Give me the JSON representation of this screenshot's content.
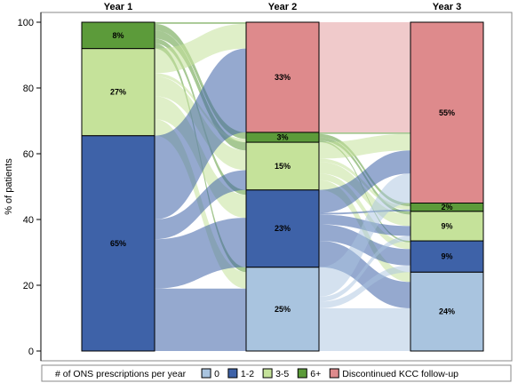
{
  "chart_data": {
    "type": "stacked-bar-alluvial",
    "title": "",
    "xlabel": "",
    "ylabel": "% of patients",
    "ylim": [
      0,
      100
    ],
    "yticks": [
      0,
      20,
      40,
      60,
      80,
      100
    ],
    "categories": [
      "Year 1",
      "Year 2",
      "Year 3"
    ],
    "legend": {
      "title": "# of ONS prescriptions per year",
      "placement": "bottom",
      "entries": [
        "0",
        "1-2",
        "3-5",
        "6+",
        "Discontinued KCC follow-up"
      ]
    },
    "series": [
      {
        "name": "0",
        "color": "#a9c4df",
        "values": [
          0,
          25.5,
          24
        ],
        "labels": [
          "",
          "25%",
          "24%"
        ]
      },
      {
        "name": "1-2",
        "color": "#3e62a8",
        "values": [
          65.5,
          23.5,
          9.5
        ],
        "labels": [
          "65%",
          "23%",
          "9%"
        ]
      },
      {
        "name": "3-5",
        "color": "#c5e29a",
        "values": [
          26.5,
          14.5,
          9
        ],
        "labels": [
          "27%",
          "15%",
          "9%"
        ]
      },
      {
        "name": "6+",
        "color": "#5c9b3a",
        "values": [
          8,
          3,
          2.5
        ],
        "labels": [
          "8%",
          "3%",
          "2%"
        ]
      },
      {
        "name": "Discontinued KCC follow-up",
        "color": "#de8a8c",
        "values": [
          0,
          33.5,
          55
        ],
        "labels": [
          "",
          "33%",
          "55%"
        ]
      }
    ],
    "flows": [
      {
        "from_col": 0,
        "to_col": 1,
        "from": "1-2",
        "to": "0",
        "value": 19
      },
      {
        "from_col": 0,
        "to_col": 1,
        "from": "1-2",
        "to": "1-2",
        "value": 15
      },
      {
        "from_col": 0,
        "to_col": 1,
        "from": "1-2",
        "to": "3-5",
        "value": 6
      },
      {
        "from_col": 0,
        "to_col": 1,
        "from": "1-2",
        "to": "Discontinued KCC follow-up",
        "value": 25.5
      },
      {
        "from_col": 0,
        "to_col": 1,
        "from": "3-5",
        "to": "0",
        "value": 5
      },
      {
        "from_col": 0,
        "to_col": 1,
        "from": "3-5",
        "to": "1-2",
        "value": 7
      },
      {
        "from_col": 0,
        "to_col": 1,
        "from": "3-5",
        "to": "3-5",
        "value": 6
      },
      {
        "from_col": 0,
        "to_col": 1,
        "from": "3-5",
        "to": "6+",
        "value": 1
      },
      {
        "from_col": 0,
        "to_col": 1,
        "from": "3-5",
        "to": "Discontinued KCC follow-up",
        "value": 7.5
      },
      {
        "from_col": 0,
        "to_col": 1,
        "from": "6+",
        "to": "0",
        "value": 1.5
      },
      {
        "from_col": 0,
        "to_col": 1,
        "from": "6+",
        "to": "1-2",
        "value": 1.5
      },
      {
        "from_col": 0,
        "to_col": 1,
        "from": "6+",
        "to": "3-5",
        "value": 2.5
      },
      {
        "from_col": 0,
        "to_col": 1,
        "from": "6+",
        "to": "6+",
        "value": 2
      },
      {
        "from_col": 0,
        "to_col": 1,
        "from": "6+",
        "to": "Discontinued KCC follow-up",
        "value": 0.5
      },
      {
        "from_col": 1,
        "to_col": 2,
        "from": "0",
        "to": "0",
        "value": 13
      },
      {
        "from_col": 1,
        "to_col": 2,
        "from": "0",
        "to": "1-2",
        "value": 2
      },
      {
        "from_col": 1,
        "to_col": 2,
        "from": "0",
        "to": "3-5",
        "value": 1.5
      },
      {
        "from_col": 1,
        "to_col": 2,
        "from": "0",
        "to": "Discontinued KCC follow-up",
        "value": 9
      },
      {
        "from_col": 1,
        "to_col": 2,
        "from": "1-2",
        "to": "0",
        "value": 8
      },
      {
        "from_col": 1,
        "to_col": 2,
        "from": "1-2",
        "to": "1-2",
        "value": 5
      },
      {
        "from_col": 1,
        "to_col": 2,
        "from": "1-2",
        "to": "3-5",
        "value": 3
      },
      {
        "from_col": 1,
        "to_col": 2,
        "from": "1-2",
        "to": "6+",
        "value": 0.5
      },
      {
        "from_col": 1,
        "to_col": 2,
        "from": "1-2",
        "to": "Discontinued KCC follow-up",
        "value": 7
      },
      {
        "from_col": 1,
        "to_col": 2,
        "from": "3-5",
        "to": "0",
        "value": 3
      },
      {
        "from_col": 1,
        "to_col": 2,
        "from": "3-5",
        "to": "1-2",
        "value": 2
      },
      {
        "from_col": 1,
        "to_col": 2,
        "from": "3-5",
        "to": "3-5",
        "value": 3.5
      },
      {
        "from_col": 1,
        "to_col": 2,
        "from": "3-5",
        "to": "6+",
        "value": 1
      },
      {
        "from_col": 1,
        "to_col": 2,
        "from": "3-5",
        "to": "Discontinued KCC follow-up",
        "value": 5
      },
      {
        "from_col": 1,
        "to_col": 2,
        "from": "6+",
        "to": "1-2",
        "value": 0.5
      },
      {
        "from_col": 1,
        "to_col": 2,
        "from": "6+",
        "to": "3-5",
        "value": 1
      },
      {
        "from_col": 1,
        "to_col": 2,
        "from": "6+",
        "to": "6+",
        "value": 1
      },
      {
        "from_col": 1,
        "to_col": 2,
        "from": "6+",
        "to": "Discontinued KCC follow-up",
        "value": 0.5
      },
      {
        "from_col": 1,
        "to_col": 2,
        "from": "Discontinued KCC follow-up",
        "to": "Discontinued KCC follow-up",
        "value": 33.5
      }
    ]
  }
}
